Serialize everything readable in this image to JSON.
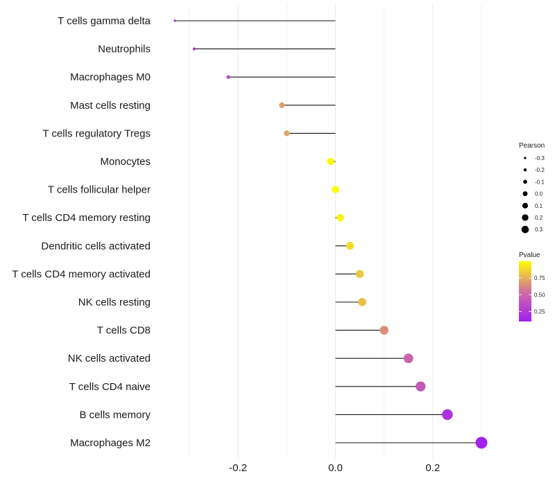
{
  "chart_data": {
    "type": "lollipop",
    "title": "",
    "xlabel": "",
    "ylabel": "",
    "xlim": [
      -0.34,
      0.32
    ],
    "x_ticks": [
      -0.2,
      0.0,
      0.2
    ],
    "x_tick_labels": [
      "-0.2",
      "0.0",
      "0.2"
    ],
    "grid": true,
    "baseline": 0,
    "categories": [
      "T cells gamma delta",
      "Neutrophils",
      "Macrophages M0",
      "Mast cells resting",
      "T cells regulatory  Tregs ",
      "Monocytes",
      "T cells follicular helper",
      "T cells CD4 memory resting",
      "Dendritic cells activated",
      "T cells CD4 memory activated",
      "NK cells resting",
      "T cells CD8",
      "NK cells activated",
      "T cells CD4 naive",
      "B cells memory",
      "Macrophages M2"
    ],
    "pearson": [
      -0.33,
      -0.29,
      -0.22,
      -0.11,
      -0.1,
      -0.01,
      0.0,
      0.01,
      0.03,
      0.05,
      0.055,
      0.1,
      0.15,
      0.175,
      0.23,
      0.3
    ],
    "pvalue": [
      0.12,
      0.18,
      0.35,
      0.7,
      0.72,
      0.98,
      0.99,
      0.96,
      0.88,
      0.82,
      0.8,
      0.65,
      0.48,
      0.42,
      0.2,
      0.12
    ],
    "legend_size": {
      "title": "Pearson",
      "values": [
        -0.3,
        -0.2,
        -0.1,
        0.0,
        0.1,
        0.2,
        0.3
      ],
      "labels": [
        "-0.3",
        "-0.2",
        "-0.1",
        "0.0",
        "0.1",
        "0.2",
        "0.3"
      ]
    },
    "legend_color": {
      "title": "Pvalue",
      "ticks": [
        0.75,
        0.5,
        0.25
      ],
      "tick_labels": [
        "0.75",
        "0.50",
        "0.25"
      ],
      "range": [
        0.1,
        1.0
      ],
      "low_color": "#a020f0",
      "mid_color": "#d070a0",
      "high_color": "#ffff00"
    },
    "grid_color": "#ececec",
    "segment_color": "#111111"
  }
}
